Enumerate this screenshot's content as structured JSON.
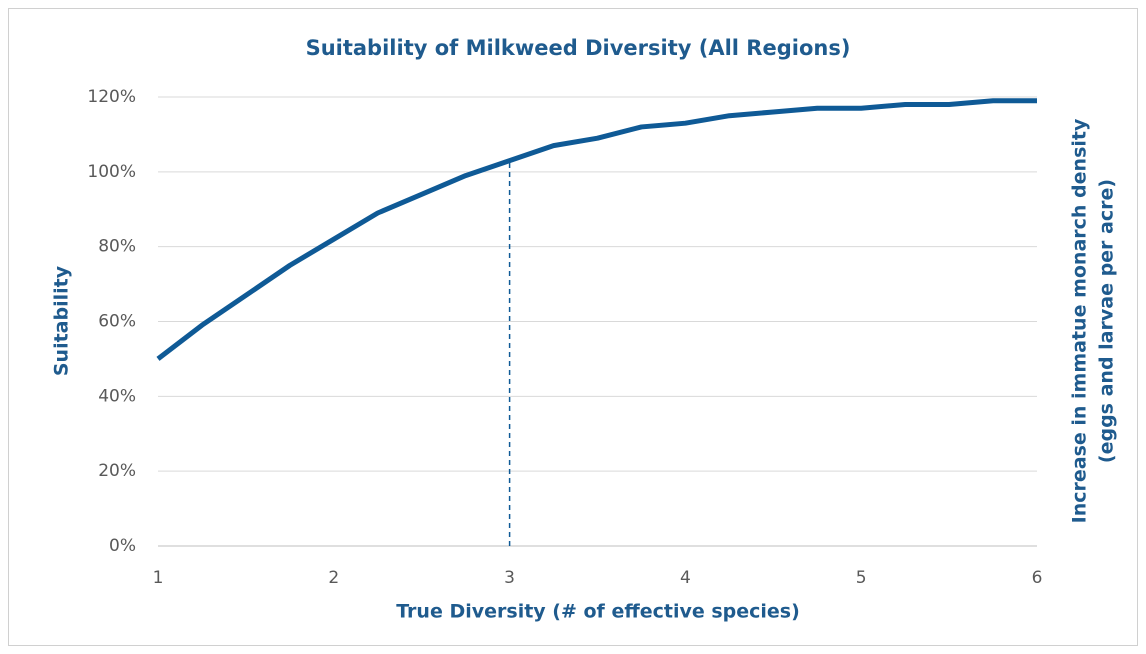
{
  "chart_data": {
    "type": "line",
    "title": "Suitability of Milkweed Diversity (All Regions)",
    "x_label": "True Diversity (# of effective species)",
    "y_label": "Suitability",
    "y2_label": [
      "Increase in immatue monarch density",
      "(eggs and larvae per acre)"
    ],
    "x": [
      1,
      1.25,
      1.5,
      1.75,
      2,
      2.25,
      2.5,
      2.75,
      3,
      3.25,
      3.5,
      3.75,
      4,
      4.25,
      4.5,
      4.75,
      5,
      5.25,
      5.5,
      5.75,
      6
    ],
    "series": [
      {
        "name": "Suitability",
        "color": "#0f5a96",
        "values": [
          50,
          59,
          67,
          75,
          82,
          89,
          94,
          99,
          103,
          107,
          109,
          112,
          113,
          115,
          116,
          117,
          117,
          118,
          118,
          119,
          119
        ]
      }
    ],
    "vline_x": 3,
    "xlim": [
      1,
      6
    ],
    "xticks": [
      1,
      2,
      3,
      4,
      5,
      6
    ],
    "ylim": [
      0,
      120
    ],
    "yticks": [
      {
        "value": 0,
        "label": "0%"
      },
      {
        "value": 20,
        "label": "20%"
      },
      {
        "value": 40,
        "label": "40%"
      },
      {
        "value": 60,
        "label": "60%"
      },
      {
        "value": 80,
        "label": "80%"
      },
      {
        "value": 100,
        "label": "100%"
      },
      {
        "value": 120,
        "label": "120%"
      }
    ],
    "grid": true
  }
}
